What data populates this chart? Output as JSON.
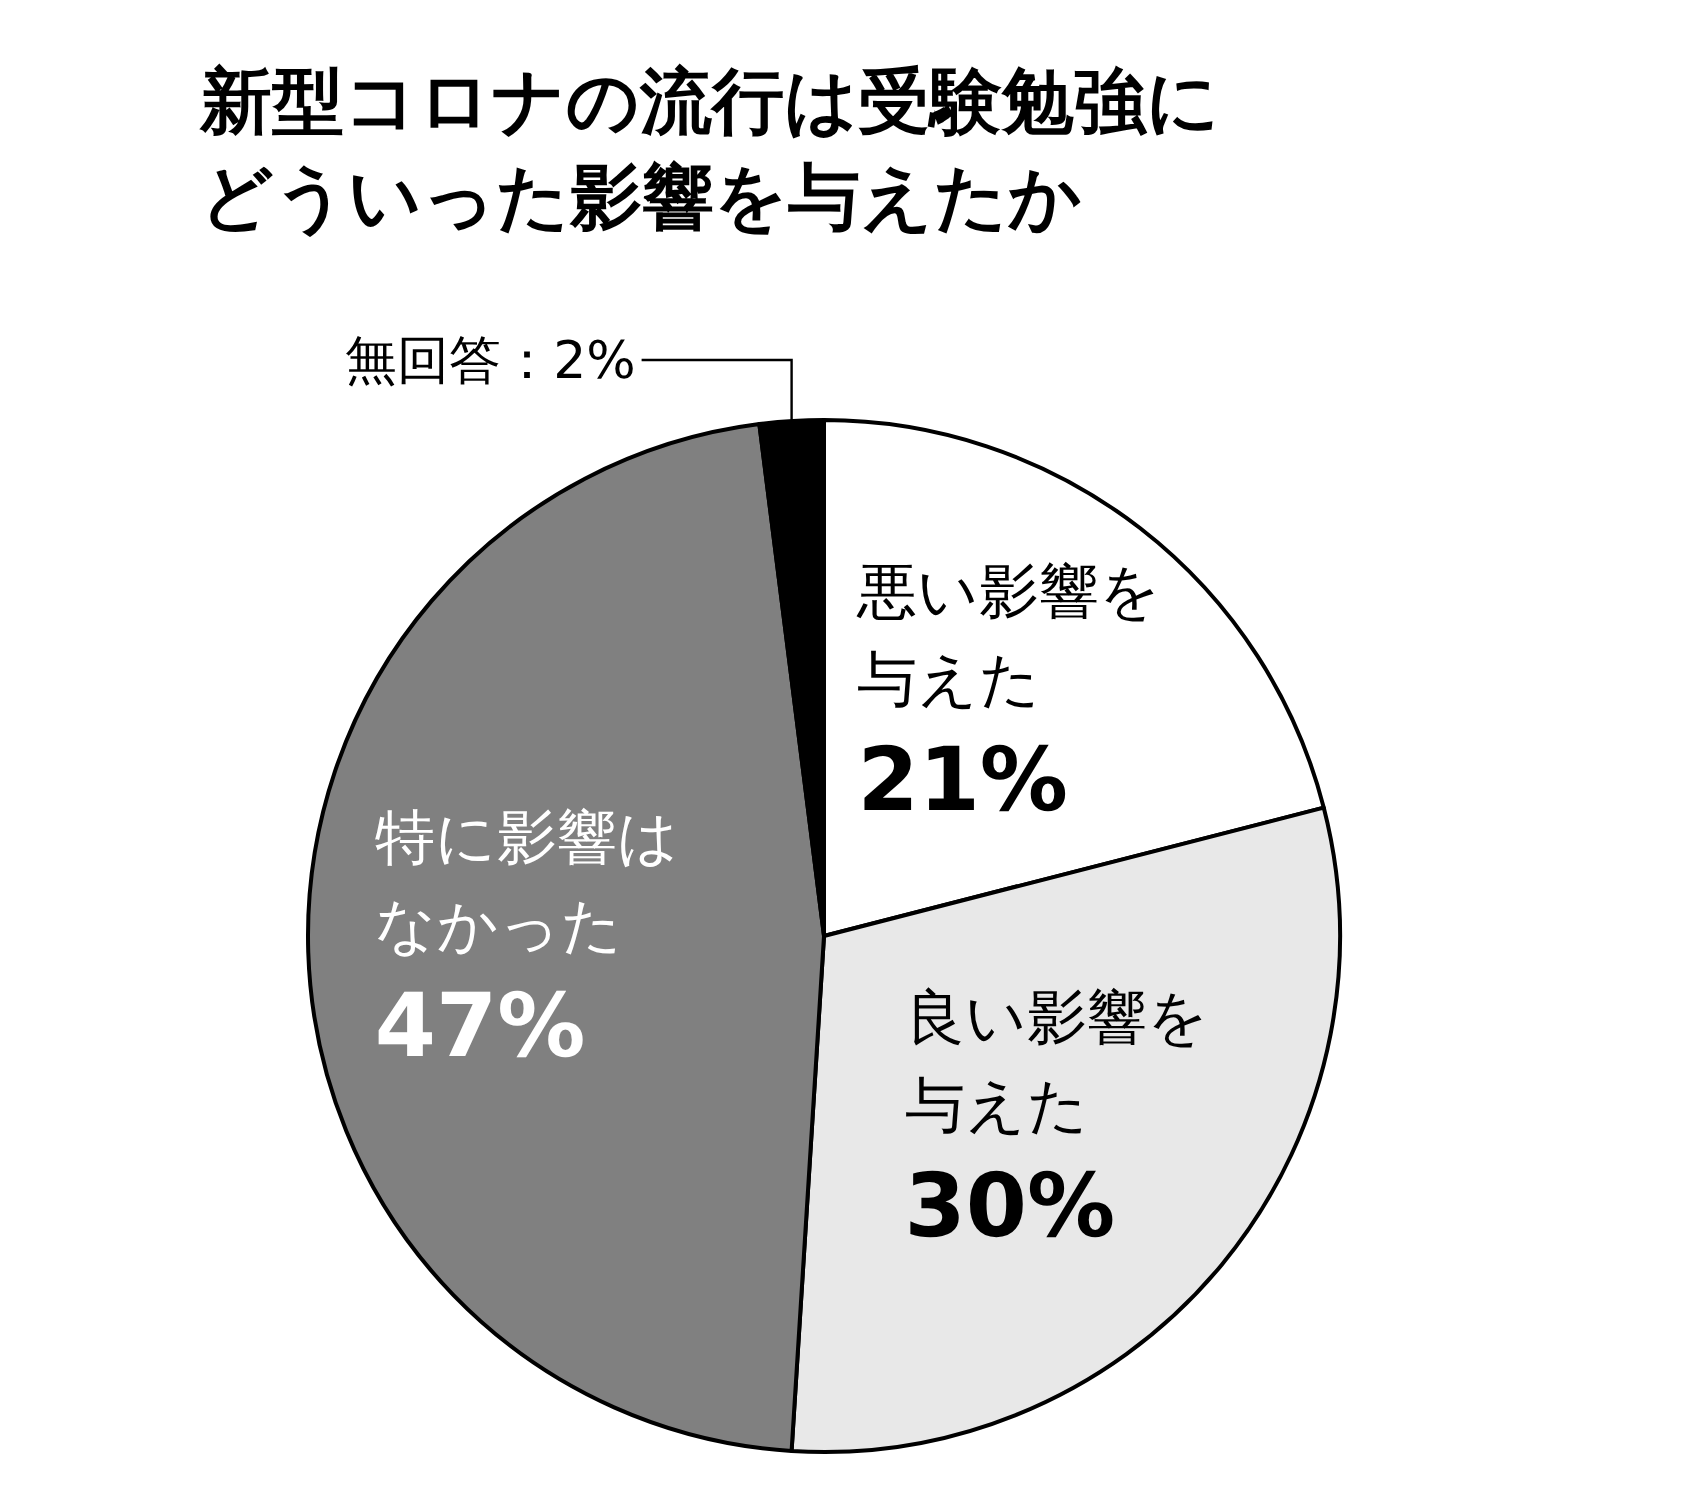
{
  "chart_data": {
    "type": "pie",
    "title": "新型コロナの流行は受験勉強にどういった影響を与えたか",
    "categories": [
      "悪い影響を与えた",
      "良い影響を与えた",
      "特に影響はなかった",
      "無回答"
    ],
    "values": [
      21,
      30,
      47,
      2
    ],
    "value_labels": [
      "21%",
      "30%",
      "47%",
      "2%"
    ],
    "colors": [
      "#ffffff",
      "#e8e8e8",
      "#808080",
      "#000000"
    ]
  }
}
